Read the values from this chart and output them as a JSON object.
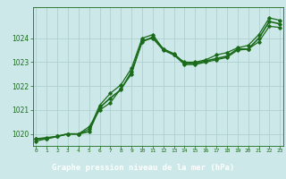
{
  "title": "Graphe pression niveau de la mer (hPa)",
  "bg_color": "#cce8e8",
  "plot_bg_color": "#cce8e8",
  "grid_color": "#b0d0d0",
  "line_color": "#1a6b1a",
  "label_bar_color": "#1a6b1a",
  "label_text_color": "#ffffff",
  "axis_text_color": "#1a6b1a",
  "x_ticks": [
    0,
    1,
    2,
    3,
    4,
    5,
    6,
    7,
    8,
    9,
    10,
    11,
    12,
    13,
    14,
    15,
    16,
    17,
    18,
    19,
    20,
    21,
    22,
    23
  ],
  "y_ticks": [
    1020,
    1021,
    1022,
    1023,
    1024
  ],
  "ylim": [
    1019.5,
    1025.3
  ],
  "xlim": [
    -0.3,
    23.3
  ],
  "series": [
    [
      1019.8,
      1019.8,
      1019.9,
      1020.0,
      1020.0,
      1020.1,
      1021.1,
      1021.5,
      1021.85,
      1022.6,
      1023.85,
      1024.05,
      1023.55,
      1023.35,
      1022.95,
      1022.95,
      1023.05,
      1023.15,
      1023.25,
      1023.55,
      1023.55,
      1024.0,
      1024.7,
      1024.6
    ],
    [
      1019.8,
      1019.85,
      1019.9,
      1020.0,
      1020.0,
      1020.2,
      1021.2,
      1021.7,
      1022.05,
      1022.75,
      1024.0,
      1024.15,
      1023.55,
      1023.3,
      1022.9,
      1022.9,
      1023.0,
      1023.1,
      1023.2,
      1023.5,
      1023.55,
      1023.85,
      1024.5,
      1024.45
    ],
    [
      1019.7,
      1019.8,
      1019.9,
      1020.0,
      1020.0,
      1020.3,
      1021.0,
      1021.3,
      1021.9,
      1022.5,
      1023.9,
      1024.0,
      1023.5,
      1023.3,
      1023.0,
      1023.0,
      1023.1,
      1023.3,
      1023.4,
      1023.6,
      1023.7,
      1024.15,
      1024.85,
      1024.75
    ]
  ]
}
